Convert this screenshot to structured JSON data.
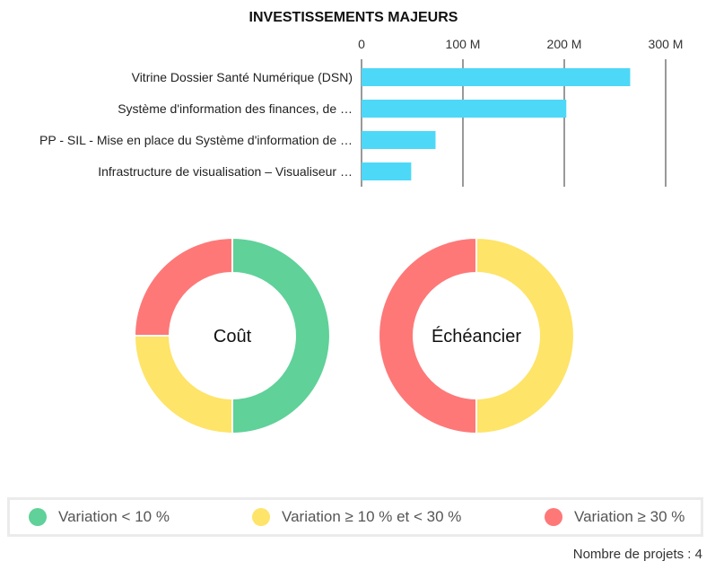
{
  "chart_data": [
    {
      "type": "bar",
      "orientation": "horizontal",
      "title": "INVESTISSEMENTS MAJEURS",
      "categories": [
        "Vitrine Dossier Santé Numérique (DSN)",
        "Système d'information des finances, de …",
        "PP - SIL - Mise en place du Système d'information de …",
        "Infrastructure de visualisation – Visualiseur …"
      ],
      "values": [
        265,
        202,
        73,
        49
      ],
      "xlim": [
        0,
        320
      ],
      "x_ticks": [
        "0",
        "100 M",
        "200 M",
        "300 M"
      ],
      "x_tick_values": [
        0,
        100,
        200,
        300
      ],
      "grid": true,
      "axis_position": "top",
      "bar_color": "#4dd8f8"
    },
    {
      "type": "pie",
      "style": "donut",
      "center_label": "Coût",
      "slices": [
        {
          "category": "Variation < 10 %",
          "value": 2,
          "color": "#5fd199"
        },
        {
          "category": "Variation ≥ 10 % et < 30 %",
          "value": 1,
          "color": "#fee468"
        },
        {
          "category": "Variation ≥ 30 %",
          "value": 1,
          "color": "#fe7878"
        }
      ]
    },
    {
      "type": "pie",
      "style": "donut",
      "center_label": "Échéancier",
      "slices": [
        {
          "category": "Variation ≥ 10 % et < 30 %",
          "value": 2,
          "color": "#fee468"
        },
        {
          "category": "Variation ≥ 30 %",
          "value": 2,
          "color": "#fe7878"
        }
      ]
    }
  ],
  "legend": {
    "items": [
      {
        "label": "Variation < 10 %",
        "color": "#5fd199"
      },
      {
        "label": "Variation ≥ 10 % et < 30 %",
        "color": "#fee468"
      },
      {
        "label": "Variation ≥ 30 %",
        "color": "#fe7878"
      }
    ]
  },
  "footer": {
    "project_count": "Nombre de projets : 4"
  }
}
